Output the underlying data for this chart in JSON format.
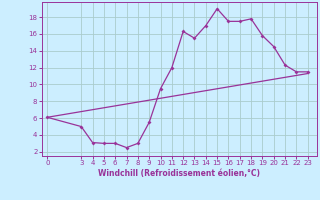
{
  "curve_x": [
    0,
    3,
    4,
    5,
    6,
    7,
    8,
    9,
    10,
    11,
    12,
    13,
    14,
    15,
    16,
    17,
    18,
    19,
    20,
    21,
    22,
    23
  ],
  "curve_y": [
    6.1,
    5.0,
    3.1,
    3.0,
    3.0,
    2.5,
    3.0,
    5.5,
    9.5,
    12.0,
    16.3,
    15.5,
    17.0,
    19.0,
    17.5,
    17.5,
    17.8,
    15.8,
    14.5,
    12.3,
    11.5,
    11.5
  ],
  "line_x": [
    0,
    23
  ],
  "line_y": [
    6.1,
    11.3
  ],
  "line_color": "#993399",
  "bg_color": "#cceeff",
  "grid_color": "#aacccc",
  "xlabel": "Windchill (Refroidissement éolien,°C)",
  "yticks": [
    2,
    4,
    6,
    8,
    10,
    12,
    14,
    16,
    18
  ],
  "xticks": [
    0,
    3,
    4,
    5,
    6,
    7,
    8,
    9,
    10,
    11,
    12,
    13,
    14,
    15,
    16,
    17,
    18,
    19,
    20,
    21,
    22,
    23
  ],
  "ylim": [
    1.5,
    19.8
  ],
  "xlim": [
    -0.5,
    23.8
  ]
}
